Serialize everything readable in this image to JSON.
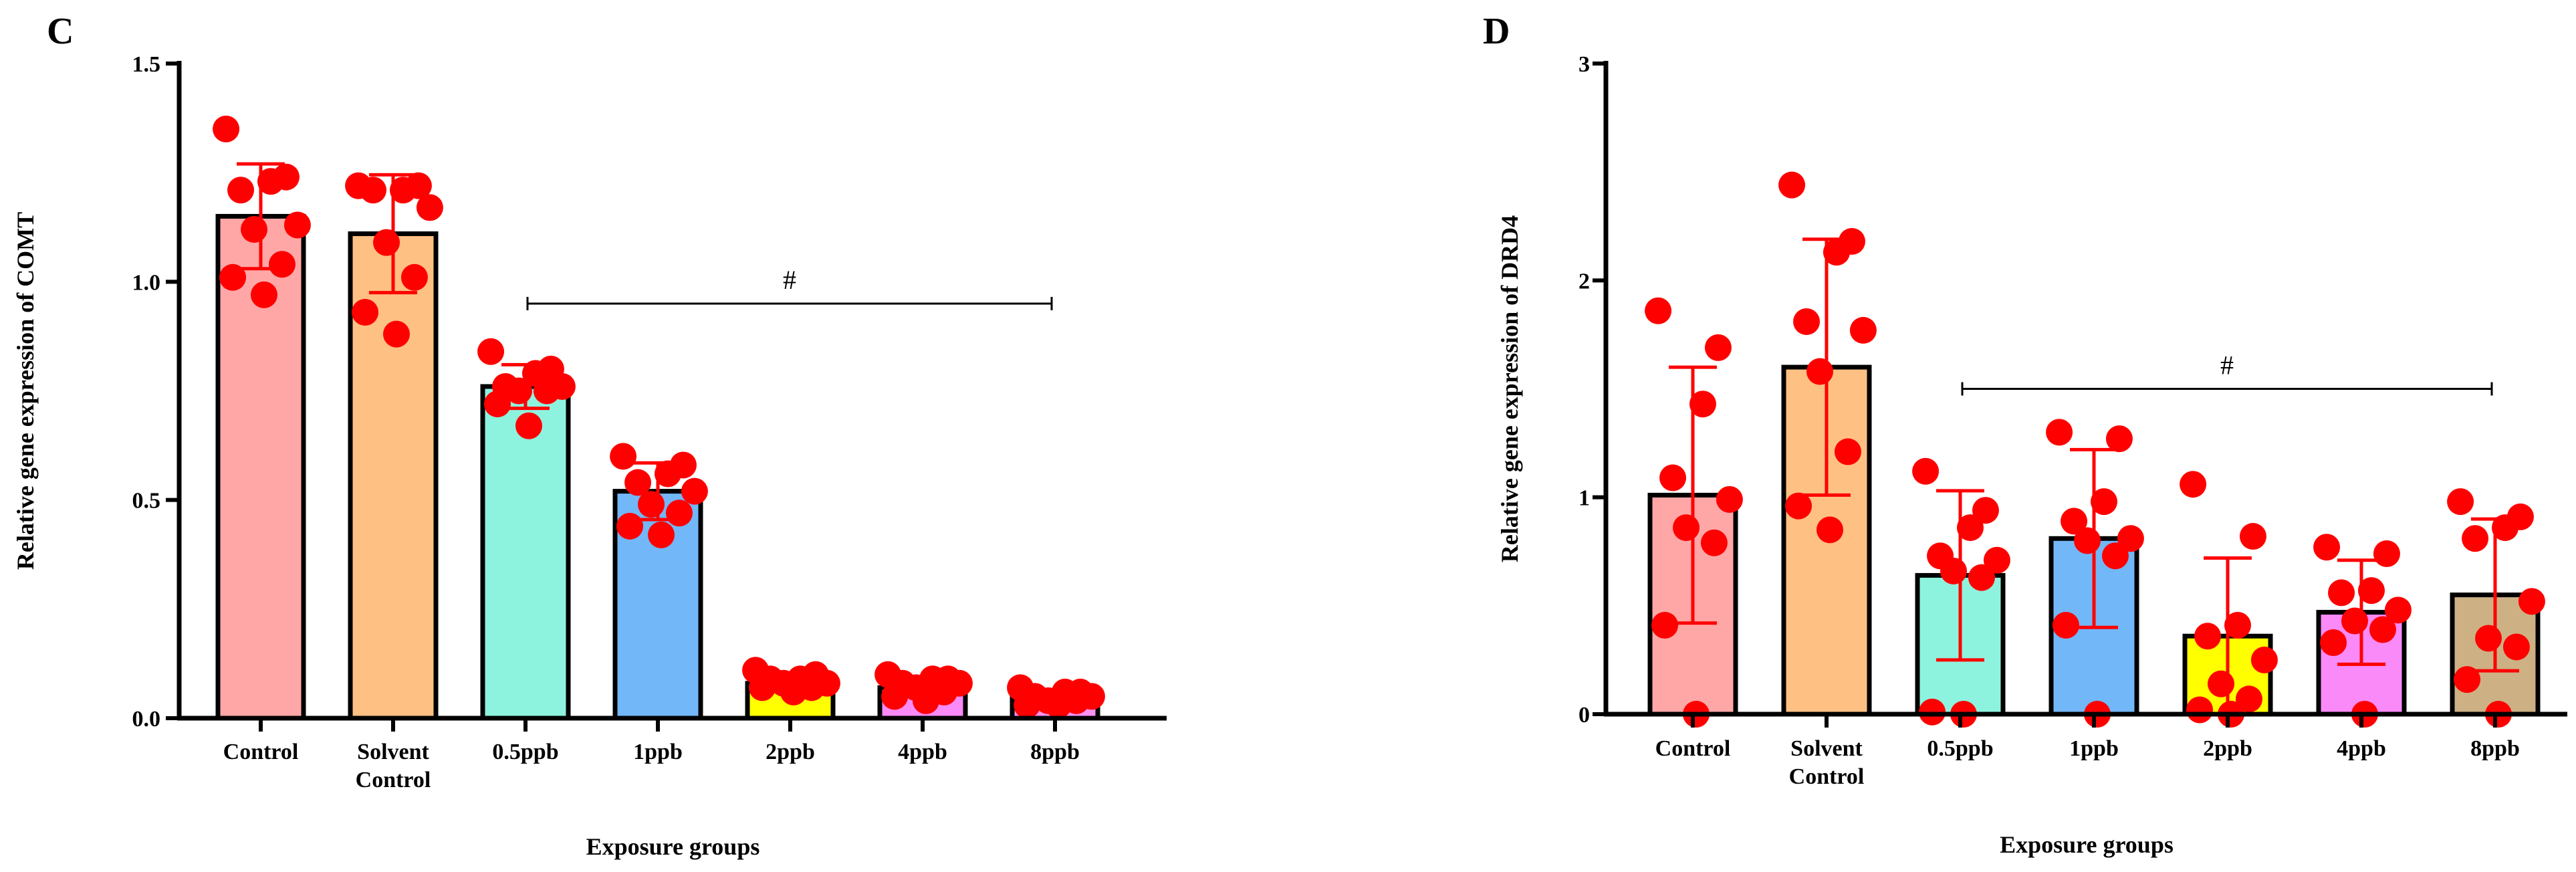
{
  "chart_data": [
    {
      "type": "bar",
      "panel_label": "C",
      "categories": [
        "Control",
        "Solvent Control",
        "0.5ppb",
        "1ppb",
        "2ppb",
        "4ppb",
        "8ppb"
      ],
      "category_lines": [
        [
          "Control"
        ],
        [
          "Solvent",
          "Control"
        ],
        [
          "0.5ppb"
        ],
        [
          "1ppb"
        ],
        [
          "2ppb"
        ],
        [
          "4ppb"
        ],
        [
          "8ppb"
        ]
      ],
      "values": [
        1.15,
        1.11,
        0.76,
        0.52,
        0.08,
        0.07,
        0.045
      ],
      "errors": [
        0.12,
        0.135,
        0.05,
        0.065,
        0.015,
        0.02,
        0.015
      ],
      "points": [
        [
          1.35,
          1.24,
          1.23,
          1.21,
          1.13,
          1.12,
          1.04,
          1.01,
          0.97
        ],
        [
          1.22,
          1.22,
          1.21,
          1.21,
          1.17,
          1.09,
          1.01,
          0.93,
          0.88
        ],
        [
          0.84,
          0.8,
          0.79,
          0.76,
          0.76,
          0.75,
          0.75,
          0.72,
          0.67
        ],
        [
          0.6,
          0.58,
          0.56,
          0.54,
          0.52,
          0.49,
          0.47,
          0.44,
          0.42
        ],
        [
          0.11,
          0.1,
          0.09,
          0.09,
          0.08,
          0.08,
          0.07,
          0.07,
          0.06
        ],
        [
          0.1,
          0.09,
          0.09,
          0.08,
          0.08,
          0.07,
          0.06,
          0.05,
          0.04
        ],
        [
          0.07,
          0.06,
          0.06,
          0.05,
          0.05,
          0.04,
          0.04,
          0.03,
          0.03
        ]
      ],
      "colors": [
        "#FFA7A7",
        "#FFC084",
        "#8EF3DE",
        "#72B7F8",
        "#FFFF00",
        "#F98AF7",
        "#FB93F5"
      ],
      "point_color": "#FF0000",
      "ylim": [
        0,
        1.5
      ],
      "yticks": [
        "0.0",
        "0.5",
        "1.0",
        "1.5"
      ],
      "ylabel": "Relative gene expression of COMT",
      "xlabel": "Exposure groups",
      "significance": {
        "label": "#",
        "from": "0.5ppb",
        "to": "8ppb",
        "y": 0.95
      }
    },
    {
      "type": "bar",
      "panel_label": "D",
      "categories": [
        "Control",
        "Solvent Control",
        "0.5ppb",
        "1ppb",
        "2ppb",
        "4ppb",
        "8ppb"
      ],
      "category_lines": [
        [
          "Control"
        ],
        [
          "Solvent",
          "Control"
        ],
        [
          "0.5ppb"
        ],
        [
          "1ppb"
        ],
        [
          "2ppb"
        ],
        [
          "4ppb"
        ],
        [
          "8ppb"
        ]
      ],
      "values": [
        1.01,
        1.6,
        0.64,
        0.81,
        0.36,
        0.47,
        0.55
      ],
      "errors": [
        0.59,
        0.59,
        0.39,
        0.41,
        0.36,
        0.24,
        0.35
      ],
      "points": [
        [
          1.86,
          1.69,
          1.43,
          1.09,
          0.99,
          0.86,
          0.79,
          0.41,
          0.0
        ],
        [
          2.44,
          2.18,
          2.13,
          1.81,
          1.77,
          1.58,
          1.21,
          0.96,
          0.85
        ],
        [
          1.12,
          0.94,
          0.86,
          0.73,
          0.71,
          0.66,
          0.63,
          0.01,
          0.0
        ],
        [
          1.3,
          1.27,
          0.98,
          0.89,
          0.81,
          0.8,
          0.73,
          0.41,
          0.0
        ],
        [
          1.06,
          0.82,
          0.41,
          0.36,
          0.25,
          0.14,
          0.07,
          0.02,
          0.0
        ],
        [
          0.77,
          0.74,
          0.57,
          0.56,
          0.48,
          0.43,
          0.39,
          0.33,
          0.0
        ],
        [
          0.98,
          0.91,
          0.86,
          0.81,
          0.52,
          0.35,
          0.31,
          0.16,
          0.0
        ]
      ],
      "colors": [
        "#FFA7A7",
        "#FFC084",
        "#8EF3DE",
        "#72B7F8",
        "#FFFF00",
        "#F98AF7",
        "#CDB184"
      ],
      "point_color": "#FF0000",
      "ylim": [
        0,
        3
      ],
      "yticks": [
        "0",
        "1",
        "2",
        "3"
      ],
      "ylabel": "Relative gene expression of DRD4",
      "xlabel": "Exposure groups",
      "significance": {
        "label": "#",
        "from": "0.5ppb",
        "to": "8ppb",
        "y": 1.5
      }
    }
  ]
}
